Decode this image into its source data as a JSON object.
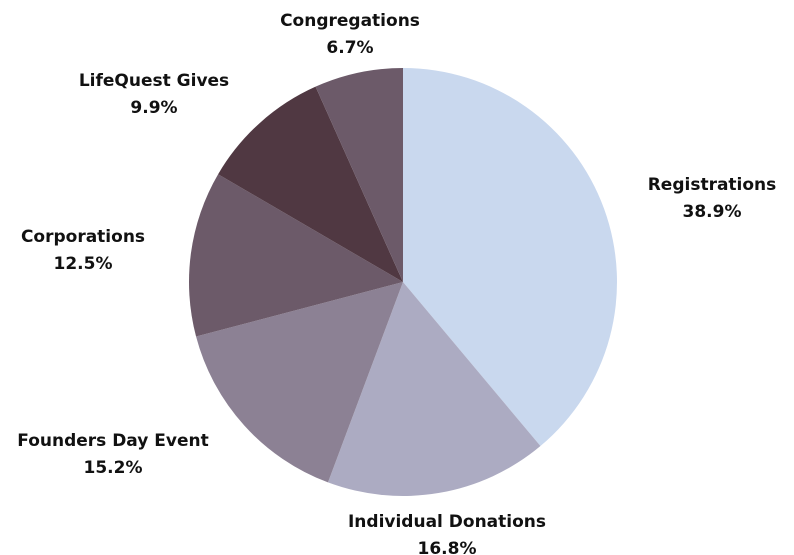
{
  "chart_data": {
    "type": "pie",
    "title": "",
    "slices": [
      {
        "name": "Registrations",
        "percent_label": "38.9%",
        "value": 38.9,
        "color": "#c9d8ee"
      },
      {
        "name": "Individual Donations",
        "percent_label": "16.8%",
        "value": 16.8,
        "color": "#acabc2"
      },
      {
        "name": "Founders Day Event",
        "percent_label": "15.2%",
        "value": 15.2,
        "color": "#8c8194"
      },
      {
        "name": "Corporations",
        "percent_label": "12.5%",
        "value": 12.5,
        "color": "#6c5a69"
      },
      {
        "name": "LifeQuest Gives",
        "percent_label": "9.9%",
        "value": 9.9,
        "color": "#503842"
      },
      {
        "name": "Congregations",
        "percent_label": "6.7%",
        "value": 6.7,
        "color": "#6c5a69"
      }
    ],
    "start_angle": "12 o'clock",
    "direction": "clockwise",
    "legend": "none",
    "labels": "outside"
  }
}
